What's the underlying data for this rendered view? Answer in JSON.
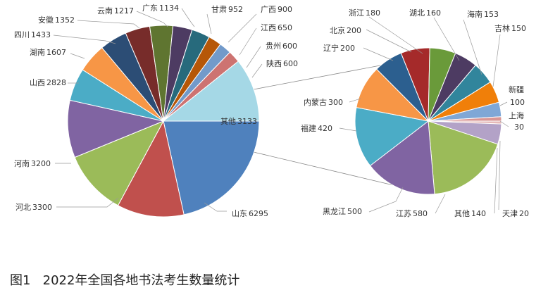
{
  "caption": "图1   2022年全国各地书法考生数量统计",
  "chart_data": [
    {
      "type": "pie",
      "name": "main",
      "slices": [
        {
          "label": "山东",
          "value": 6295,
          "color": "#4f81bd"
        },
        {
          "label": "河北",
          "value": 3300,
          "color": "#c0504d"
        },
        {
          "label": "河南",
          "value": 3200,
          "color": "#9bbb59"
        },
        {
          "label": "山西",
          "value": 2828,
          "color": "#8064a2"
        },
        {
          "label": "湖南",
          "value": 1607,
          "color": "#4bacc6"
        },
        {
          "label": "四川",
          "value": 1433,
          "color": "#f79646"
        },
        {
          "label": "安徽",
          "value": 1352,
          "color": "#2c4d75"
        },
        {
          "label": "云南",
          "value": 1217,
          "color": "#772c2a"
        },
        {
          "label": "广东",
          "value": 1134,
          "color": "#5f7530"
        },
        {
          "label": "甘肃",
          "value": 952,
          "color": "#4d3b62"
        },
        {
          "label": "广西",
          "value": 900,
          "color": "#276a7c"
        },
        {
          "label": "江西",
          "value": 650,
          "color": "#b65708"
        },
        {
          "label": "贵州",
          "value": 600,
          "color": "#729aca"
        },
        {
          "label": "陕西",
          "value": 600,
          "color": "#cd7371"
        },
        {
          "label": "其他",
          "value": 3133,
          "color": "#a5d8e6"
        }
      ]
    },
    {
      "type": "pie",
      "name": "secondary",
      "slices": [
        {
          "label": "天津",
          "value": 20,
          "color": "#e6b9b8"
        },
        {
          "label": "其他",
          "value": 140,
          "color": "#b3a2c7"
        },
        {
          "label": "江苏",
          "value": 580,
          "color": "#9bbb59"
        },
        {
          "label": "黑龙江",
          "value": 500,
          "color": "#8064a2"
        },
        {
          "label": "福建",
          "value": 420,
          "color": "#4bacc6"
        },
        {
          "label": "内蒙古",
          "value": 300,
          "color": "#f79646"
        },
        {
          "label": "辽宁",
          "value": 200,
          "color": "#2c5f8f"
        },
        {
          "label": "北京",
          "value": 200,
          "color": "#a52a2a"
        },
        {
          "label": "浙江",
          "value": 180,
          "color": "#6a9a3a"
        },
        {
          "label": "湖北",
          "value": 160,
          "color": "#4d3b62"
        },
        {
          "label": "海南",
          "value": 153,
          "color": "#31859c"
        },
        {
          "label": "吉林",
          "value": 150,
          "color": "#f07f09"
        },
        {
          "label": "新疆",
          "value": 100,
          "color": "#7fa7d6"
        },
        {
          "label": "上海",
          "value": 30,
          "color": "#d99694"
        }
      ]
    }
  ]
}
